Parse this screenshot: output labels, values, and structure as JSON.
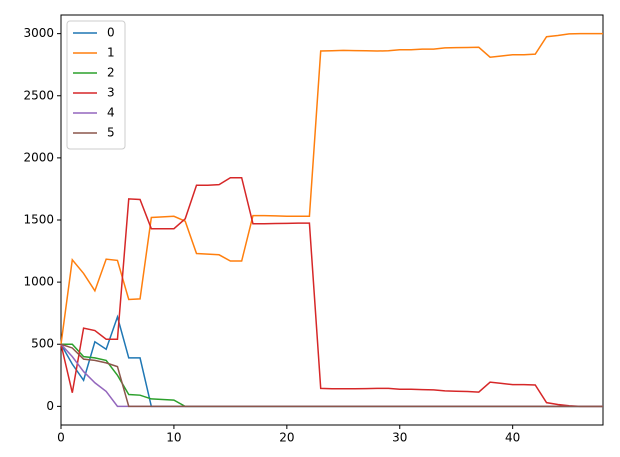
{
  "chart_data": {
    "type": "line",
    "x": [
      0,
      1,
      2,
      3,
      4,
      5,
      6,
      7,
      8,
      9,
      10,
      11,
      12,
      13,
      14,
      15,
      16,
      17,
      18,
      19,
      20,
      21,
      22,
      23,
      24,
      25,
      26,
      27,
      28,
      29,
      30,
      31,
      32,
      33,
      34,
      35,
      36,
      37,
      38,
      39,
      40,
      41,
      42,
      43,
      44,
      45,
      46,
      47,
      48
    ],
    "series": [
      {
        "name": "0",
        "color": "#1f77b4",
        "values": [
          500,
          340,
          210,
          520,
          460,
          720,
          390,
          390,
          0,
          0,
          0,
          0,
          0,
          0,
          0,
          0,
          0,
          0,
          0,
          0,
          0,
          0,
          0,
          0,
          0,
          0,
          0,
          0,
          0,
          0,
          0,
          0,
          0,
          0,
          0,
          0,
          0,
          0,
          0,
          0,
          0,
          0,
          0,
          0,
          0,
          0,
          0,
          0,
          0
        ]
      },
      {
        "name": "1",
        "color": "#ff7f0e",
        "values": [
          500,
          1180,
          1070,
          930,
          1185,
          1175,
          860,
          865,
          1520,
          1525,
          1530,
          1490,
          1230,
          1225,
          1220,
          1170,
          1170,
          1535,
          1535,
          1533,
          1530,
          1530,
          1530,
          2860,
          2862,
          2865,
          2863,
          2862,
          2860,
          2862,
          2870,
          2870,
          2875,
          2875,
          2885,
          2887,
          2888,
          2890,
          2810,
          2820,
          2830,
          2830,
          2835,
          2975,
          2985,
          2998,
          3000,
          3000,
          3000
        ]
      },
      {
        "name": "2",
        "color": "#2ca02c",
        "values": [
          500,
          500,
          400,
          390,
          370,
          250,
          95,
          90,
          60,
          55,
          50,
          0,
          0,
          0,
          0,
          0,
          0,
          0,
          0,
          0,
          0,
          0,
          0,
          0,
          0,
          0,
          0,
          0,
          0,
          0,
          0,
          0,
          0,
          0,
          0,
          0,
          0,
          0,
          0,
          0,
          0,
          0,
          0,
          0,
          0,
          0,
          0,
          0,
          0
        ]
      },
      {
        "name": "3",
        "color": "#d62728",
        "values": [
          500,
          110,
          630,
          610,
          540,
          540,
          1670,
          1665,
          1430,
          1430,
          1430,
          1510,
          1780,
          1780,
          1785,
          1840,
          1840,
          1470,
          1470,
          1472,
          1473,
          1475,
          1475,
          145,
          142,
          142,
          142,
          143,
          145,
          145,
          138,
          138,
          135,
          133,
          125,
          122,
          120,
          115,
          195,
          185,
          175,
          175,
          172,
          30,
          15,
          5,
          0,
          0,
          0
        ]
      },
      {
        "name": "4",
        "color": "#9467bd",
        "values": [
          500,
          400,
          280,
          190,
          120,
          0,
          0,
          0,
          0,
          0,
          0,
          0,
          0,
          0,
          0,
          0,
          0,
          0,
          0,
          0,
          0,
          0,
          0,
          0,
          0,
          0,
          0,
          0,
          0,
          0,
          0,
          0,
          0,
          0,
          0,
          0,
          0,
          0,
          0,
          0,
          0,
          0,
          0,
          0,
          0,
          0,
          0,
          0,
          0
        ]
      },
      {
        "name": "5",
        "color": "#8c564b",
        "values": [
          500,
          470,
          380,
          370,
          350,
          320,
          0,
          0,
          0,
          0,
          0,
          0,
          0,
          0,
          0,
          0,
          0,
          0,
          0,
          0,
          0,
          0,
          0,
          0,
          0,
          0,
          0,
          0,
          0,
          0,
          0,
          0,
          0,
          0,
          0,
          0,
          0,
          0,
          0,
          0,
          0,
          0,
          0,
          0,
          0,
          0,
          0,
          0,
          0
        ]
      }
    ],
    "xlim": [
      0,
      48
    ],
    "xticks": [
      0,
      10,
      20,
      30,
      40
    ],
    "ylim": [
      -150,
      3150
    ],
    "yticks": [
      0,
      500,
      1000,
      1500,
      2000,
      2500,
      3000
    ],
    "legend": "upper left"
  }
}
